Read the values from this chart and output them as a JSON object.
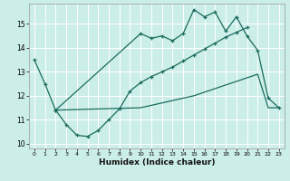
{
  "xlabel": "Humidex (Indice chaleur)",
  "bg_color": "#cceee8",
  "line_color": "#1a6b5e",
  "grid_color": "#ffffff",
  "xlim": [
    -0.5,
    23.5
  ],
  "ylim": [
    9.8,
    15.85
  ],
  "yticks": [
    10,
    11,
    12,
    13,
    14,
    15
  ],
  "xticks": [
    0,
    1,
    2,
    3,
    4,
    5,
    6,
    7,
    8,
    9,
    10,
    11,
    12,
    13,
    14,
    15,
    16,
    17,
    18,
    19,
    20,
    21,
    22,
    23
  ],
  "line_top": {
    "x": [
      0,
      1,
      2,
      10,
      11,
      12,
      13,
      14,
      15,
      16,
      17,
      18,
      19,
      20,
      21,
      22,
      23
    ],
    "y": [
      13.5,
      12.5,
      11.4,
      14.6,
      14.4,
      14.5,
      14.3,
      14.6,
      15.6,
      15.3,
      15.5,
      14.7,
      15.3,
      14.5,
      13.9,
      11.9,
      11.5
    ]
  },
  "line_mid": {
    "x": [
      2,
      3,
      4,
      5,
      6,
      7,
      8,
      9,
      10,
      11,
      12,
      13,
      14,
      15,
      16,
      17,
      18,
      19,
      20
    ],
    "y": [
      11.4,
      10.8,
      10.35,
      10.3,
      10.55,
      11.0,
      11.45,
      12.2,
      12.55,
      12.8,
      13.0,
      13.2,
      13.45,
      13.7,
      13.95,
      14.2,
      14.45,
      14.65,
      14.85
    ]
  },
  "line_bot": {
    "x": [
      2,
      10,
      11,
      12,
      13,
      14,
      15,
      16,
      17,
      18,
      19,
      20,
      21,
      22,
      23
    ],
    "y": [
      11.4,
      11.5,
      11.6,
      11.7,
      11.8,
      11.9,
      12.0,
      12.15,
      12.3,
      12.45,
      12.6,
      12.75,
      12.9,
      11.5,
      11.5
    ]
  }
}
